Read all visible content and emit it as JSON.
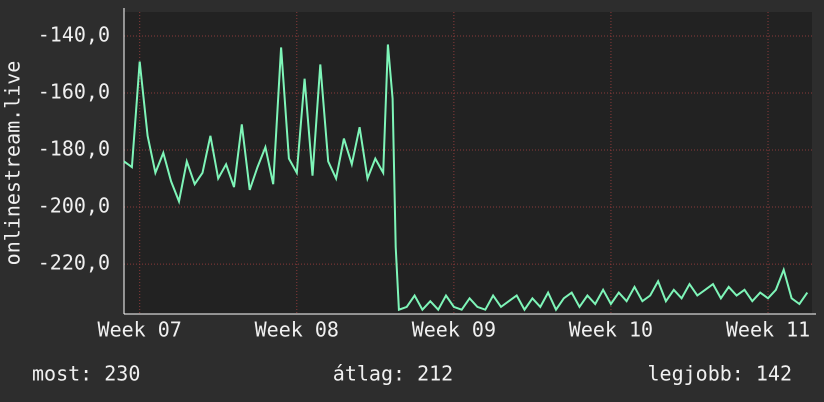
{
  "chart_data": {
    "type": "line",
    "ylabel": "onlinestream.live",
    "xlim": [
      6.9,
      11.28
    ],
    "xticks": [
      {
        "value": 7,
        "label": "Week 07"
      },
      {
        "value": 8,
        "label": "Week 08"
      },
      {
        "value": 9,
        "label": "Week 09"
      },
      {
        "value": 10,
        "label": "Week 10"
      },
      {
        "value": 11,
        "label": "Week 11"
      }
    ],
    "ylim": [
      -237.5,
      -131.6
    ],
    "yticks": [
      {
        "value": -140,
        "label": "-140,0"
      },
      {
        "value": -160,
        "label": "-160,0"
      },
      {
        "value": -180,
        "label": "-180,0"
      },
      {
        "value": -200,
        "label": "-200,0"
      },
      {
        "value": -220,
        "label": "-220,0"
      }
    ],
    "grid": true,
    "x": [
      6.9,
      6.95,
      7.0,
      7.05,
      7.1,
      7.15,
      7.2,
      7.25,
      7.3,
      7.35,
      7.4,
      7.45,
      7.5,
      7.55,
      7.6,
      7.65,
      7.7,
      7.75,
      7.8,
      7.85,
      7.9,
      7.95,
      8.0,
      8.05,
      8.1,
      8.15,
      8.2,
      8.25,
      8.3,
      8.35,
      8.4,
      8.45,
      8.5,
      8.55,
      8.58,
      8.61,
      8.63,
      8.65,
      8.7,
      8.75,
      8.8,
      8.85,
      8.9,
      8.95,
      9.0,
      9.05,
      9.1,
      9.15,
      9.2,
      9.25,
      9.3,
      9.35,
      9.4,
      9.45,
      9.5,
      9.55,
      9.6,
      9.65,
      9.7,
      9.75,
      9.8,
      9.85,
      9.9,
      9.95,
      10.0,
      10.05,
      10.1,
      10.15,
      10.2,
      10.25,
      10.3,
      10.35,
      10.4,
      10.45,
      10.5,
      10.55,
      10.6,
      10.65,
      10.7,
      10.75,
      10.8,
      10.85,
      10.9,
      10.95,
      11.0,
      11.05,
      11.1,
      11.15,
      11.2,
      11.25
    ],
    "series": [
      {
        "color": "#7ef5b8",
        "values": [
          -184,
          -186,
          -149,
          -175,
          -188,
          -181,
          -191,
          -198,
          -184,
          -192,
          -188,
          -175,
          -190,
          -185,
          -193,
          -171,
          -194,
          -186,
          -179,
          -192,
          -144,
          -183,
          -188,
          -155,
          -189,
          -150,
          -184,
          -190,
          -176,
          -185,
          -172,
          -190,
          -183,
          -188,
          -143,
          -162,
          -214,
          -236,
          -235,
          -231,
          -236,
          -233,
          -236,
          -231,
          -235,
          -236,
          -232,
          -235,
          -236,
          -231,
          -235,
          -233,
          -231,
          -236,
          -232,
          -235,
          -230,
          -236,
          -232,
          -230,
          -235,
          -231,
          -234,
          -229,
          -234,
          -230,
          -233,
          -228,
          -233,
          -231,
          -226,
          -233,
          -229,
          -232,
          -227,
          -231,
          -229,
          -227,
          -232,
          -228,
          -231,
          -229,
          -233,
          -230,
          -232,
          -229,
          -222,
          -232,
          -234,
          -230
        ]
      }
    ],
    "footer": [
      "most: 230",
      "átlag: 212",
      "legjobb: 142"
    ]
  }
}
